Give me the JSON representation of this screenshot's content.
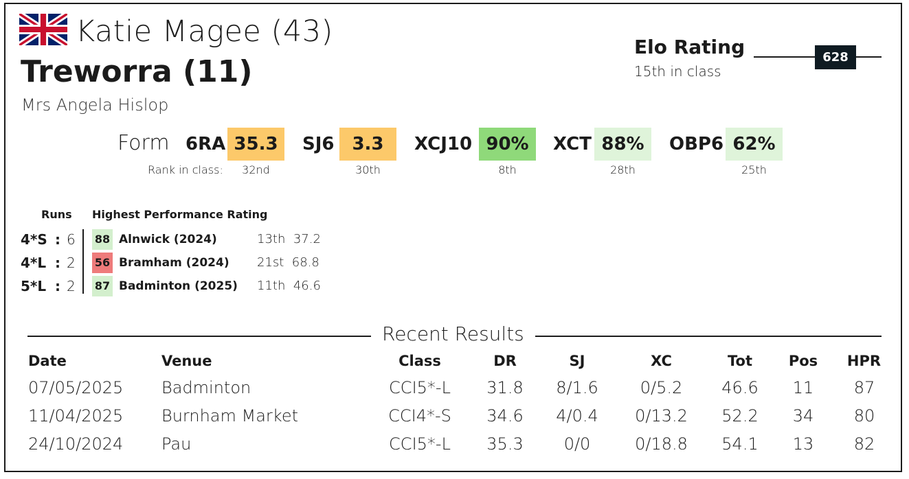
{
  "header": {
    "rider": "Katie Magee (43)",
    "horse": "Treworra (11)",
    "owner": "Mrs Angela Hislop",
    "flag_icon": "uk-flag-icon"
  },
  "elo": {
    "title": "Elo Rating",
    "subtitle": "15th in class",
    "value": "628"
  },
  "form": {
    "label": "Form",
    "rank_label": "Rank in class:",
    "metrics": [
      {
        "name": "6RA",
        "value": "35.3",
        "rank": "32nd",
        "color": "#fcc96a"
      },
      {
        "name": "SJ6",
        "value": "3.3",
        "rank": "30th",
        "color": "#fcc96a"
      },
      {
        "name": "XCJ10",
        "value": "90%",
        "rank": "8th",
        "color": "#8fd97a"
      },
      {
        "name": "XCT",
        "value": "88%",
        "rank": "28th",
        "color": "#dff4da"
      },
      {
        "name": "OBP6",
        "value": "62%",
        "rank": "25th",
        "color": "#dff4da"
      }
    ]
  },
  "hpr": {
    "runs_header": "Runs",
    "hpr_header": "Highest Performance Rating",
    "rows": [
      {
        "level": "4*S",
        "runs": "6",
        "hpr": "88",
        "event": "Alnwick  (2024)",
        "place": "13th",
        "score": "37.2",
        "color": "#d3efcd"
      },
      {
        "level": "4*L",
        "runs": "2",
        "hpr": "56",
        "event": "Bramham  (2024)",
        "place": "21st",
        "score": "68.8",
        "color": "#ee7b7b"
      },
      {
        "level": "5*L",
        "runs": "2",
        "hpr": "87",
        "event": "Badminton  (2025)",
        "place": "11th",
        "score": "46.6",
        "color": "#d3efcd"
      }
    ]
  },
  "results": {
    "title": "Recent Results",
    "columns": [
      "Date",
      "Venue",
      "Class",
      "DR",
      "SJ",
      "XC",
      "Tot",
      "Pos",
      "HPR"
    ],
    "rows": [
      [
        "07/05/2025",
        "Badminton",
        "CCI5*-L",
        "31.8",
        "8/1.6",
        "0/5.2",
        "46.6",
        "11",
        "87"
      ],
      [
        "11/04/2025",
        "Burnham Market",
        "CCI4*-S",
        "34.6",
        "4/0.4",
        "0/13.2",
        "52.2",
        "34",
        "80"
      ],
      [
        "24/10/2024",
        "Pau",
        "CCI5*-L",
        "35.3",
        "0/0",
        "0/18.8",
        "54.1",
        "13",
        "82"
      ]
    ]
  }
}
